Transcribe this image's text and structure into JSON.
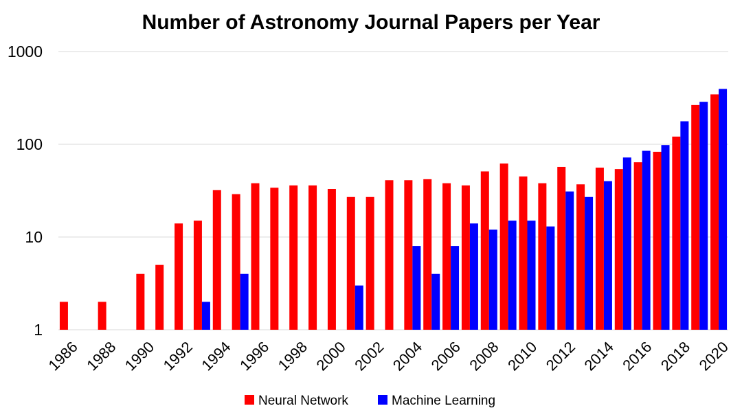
{
  "chart_data": {
    "type": "bar",
    "title": "Number of Astronomy Journal Papers per Year",
    "xlabel": "",
    "ylabel": "",
    "y_scale": "log",
    "ylim": [
      1,
      1000
    ],
    "y_ticks": [
      1,
      10,
      100,
      1000
    ],
    "grid": true,
    "legend_position": "bottom",
    "categories": [
      "1986",
      "1987",
      "1988",
      "1989",
      "1990",
      "1991",
      "1992",
      "1993",
      "1994",
      "1995",
      "1996",
      "1997",
      "1998",
      "1999",
      "2000",
      "2001",
      "2002",
      "2003",
      "2004",
      "2005",
      "2006",
      "2007",
      "2008",
      "2009",
      "2010",
      "2011",
      "2012",
      "2013",
      "2014",
      "2015",
      "2016",
      "2017",
      "2018",
      "2019",
      "2020"
    ],
    "x_tick_labels": [
      "1986",
      "1988",
      "1990",
      "1992",
      "1994",
      "1996",
      "1998",
      "2000",
      "2002",
      "2004",
      "2006",
      "2008",
      "2010",
      "2012",
      "2014",
      "2016",
      "2018",
      "2020"
    ],
    "series": [
      {
        "name": "Neural Network",
        "color": "#ff0000",
        "values": [
          2,
          null,
          2,
          null,
          4,
          5,
          14,
          15,
          32,
          29,
          38,
          34,
          36,
          36,
          33,
          27,
          27,
          41,
          41,
          42,
          38,
          36,
          51,
          62,
          45,
          38,
          57,
          37,
          56,
          54,
          64,
          83,
          121,
          265,
          345
        ]
      },
      {
        "name": "Machine Learning",
        "color": "#0000ff",
        "values": [
          null,
          null,
          null,
          null,
          null,
          null,
          null,
          2,
          null,
          4,
          null,
          null,
          null,
          null,
          null,
          3,
          null,
          null,
          8,
          4,
          8,
          14,
          12,
          15,
          15,
          13,
          31,
          27,
          40,
          72,
          85,
          98,
          177,
          287,
          395
        ]
      }
    ]
  }
}
